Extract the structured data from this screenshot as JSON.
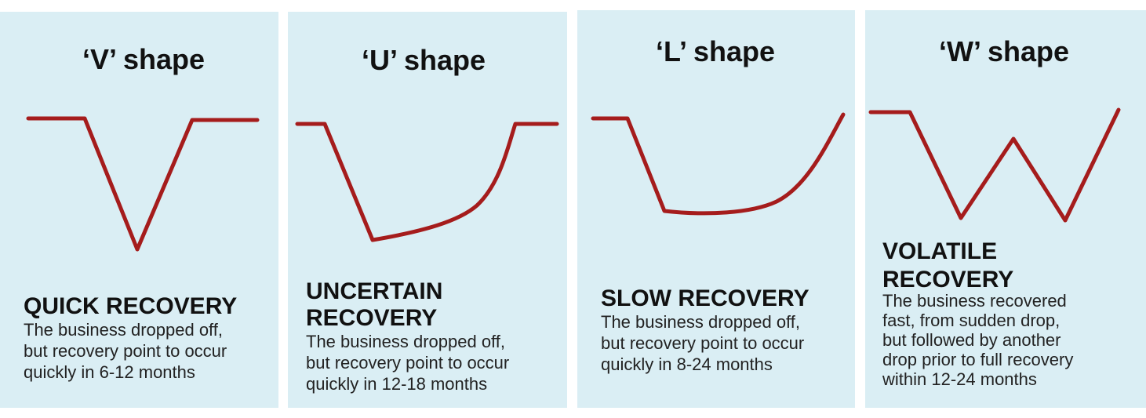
{
  "panels": [
    {
      "title": "‘V’ shape",
      "heading": [
        "QUICK RECOVERY"
      ],
      "description": [
        "The business dropped off,",
        "but recovery point to occur",
        "quickly in 6-12 months"
      ]
    },
    {
      "title": "‘U’ shape",
      "heading": [
        "UNCERTAIN",
        "RECOVERY"
      ],
      "description": [
        "The business dropped off,",
        "but recovery point to occur",
        "quickly in 12-18 months"
      ]
    },
    {
      "title": "‘L’ shape",
      "heading": [
        "SLOW RECOVERY"
      ],
      "description": [
        "The business dropped off,",
        "but recovery point to occur",
        "quickly in 8-24 months"
      ]
    },
    {
      "title": "‘W’ shape",
      "heading": [
        "VOLATILE",
        "RECOVERY"
      ],
      "description": [
        "The business recovered",
        "fast, from sudden drop,",
        "but followed by another",
        "drop prior to full recovery",
        "within 12-24 months"
      ]
    }
  ]
}
